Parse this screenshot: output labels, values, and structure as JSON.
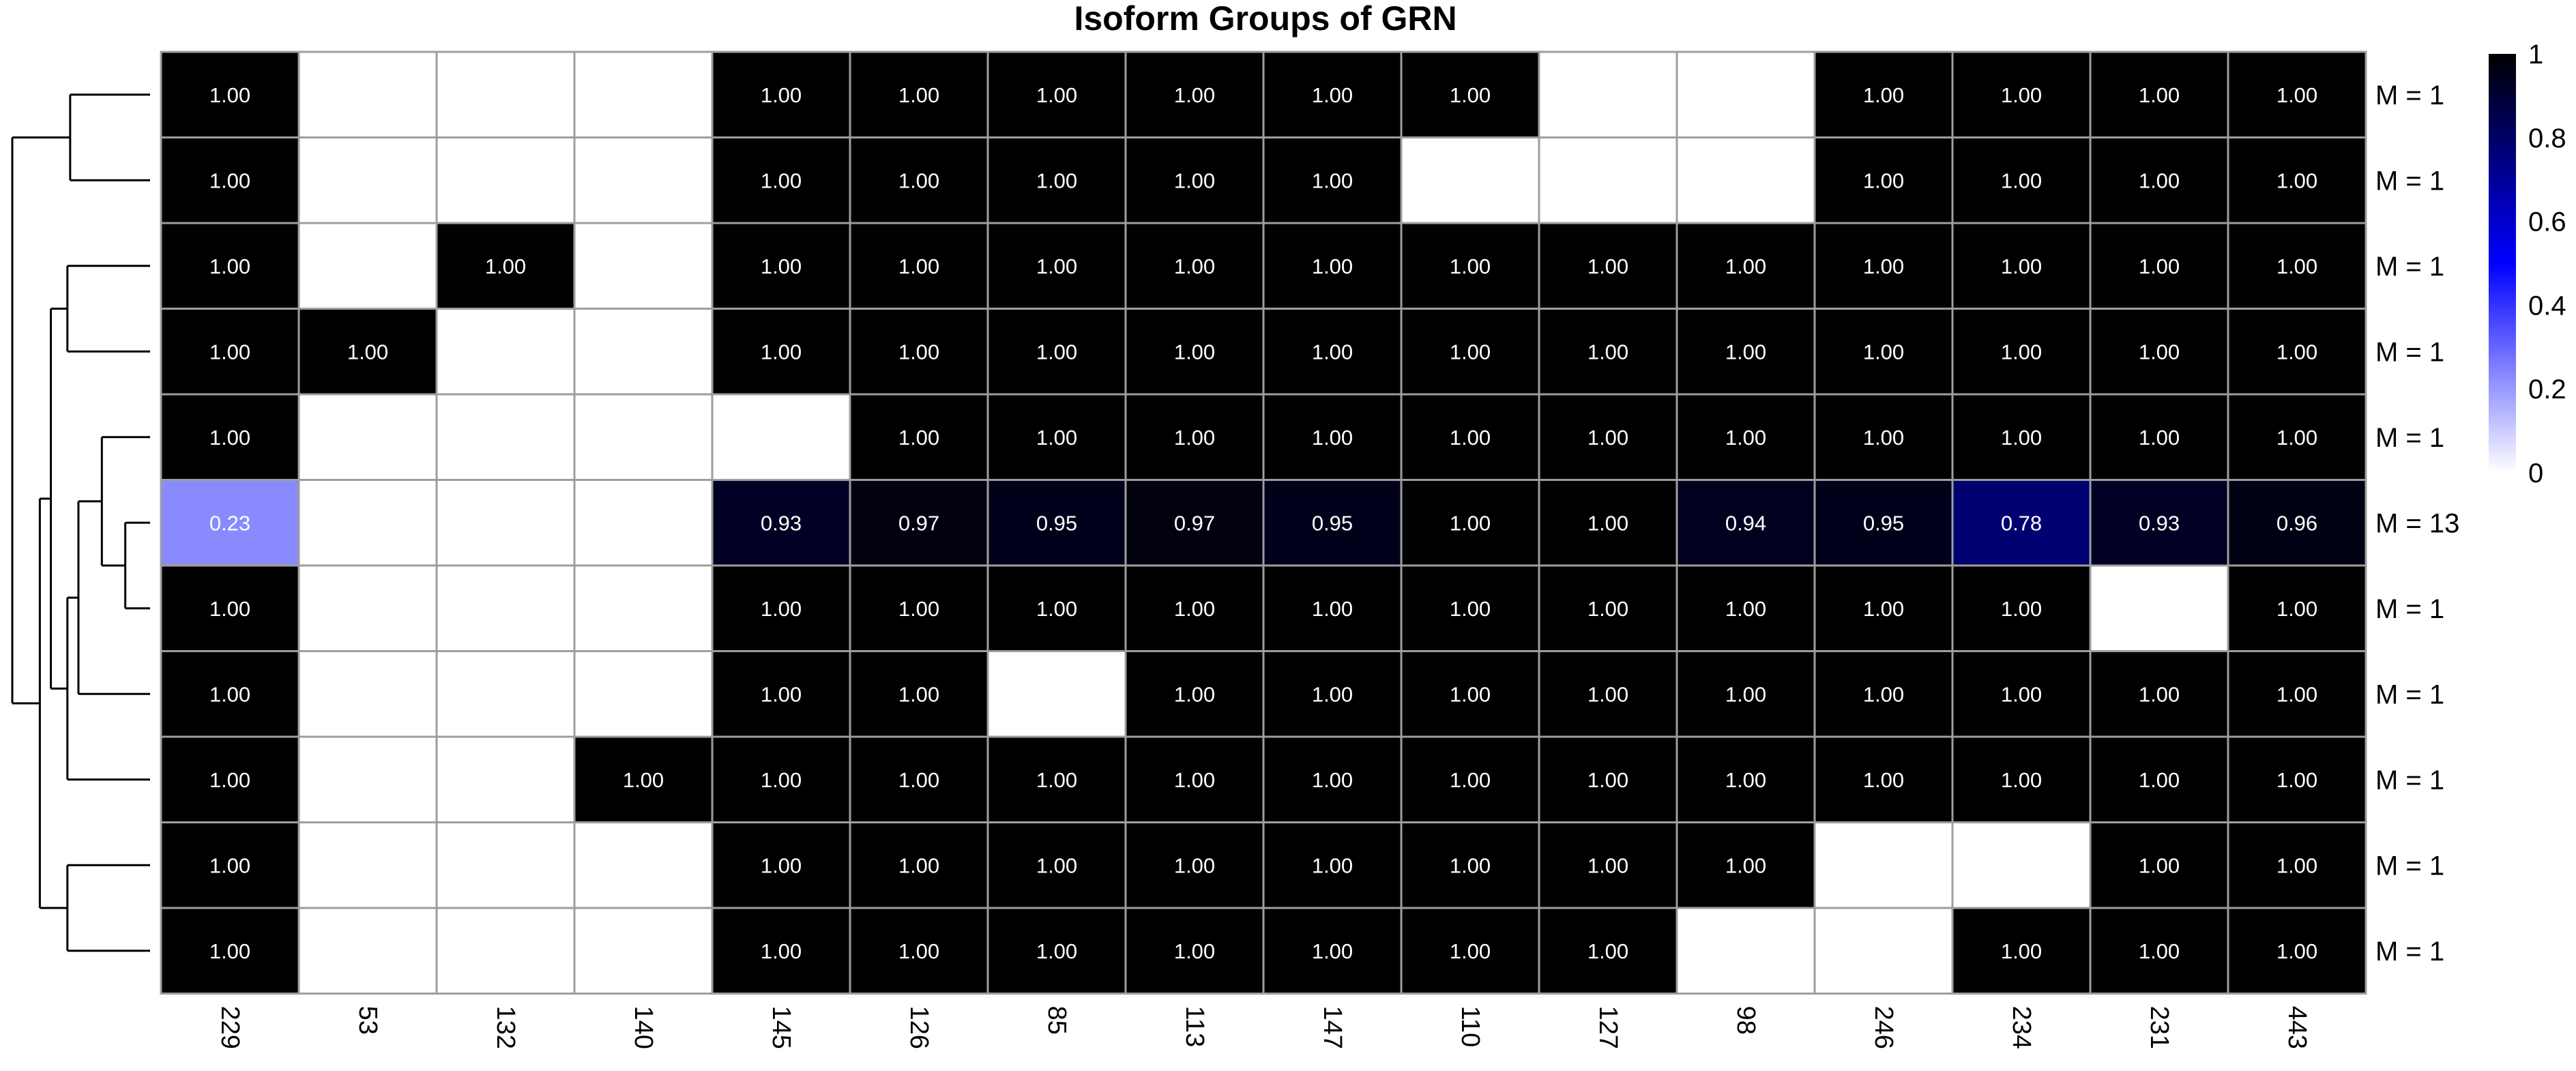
{
  "chart_data": {
    "type": "heatmap",
    "title": "Isoform Groups of GRN",
    "columns": [
      "229",
      "53",
      "132",
      "140",
      "145",
      "126",
      "85",
      "113",
      "147",
      "110",
      "127",
      "98",
      "246",
      "234",
      "231",
      "443"
    ],
    "row_labels": [
      "M = 1",
      "M = 1",
      "M = 1",
      "M = 1",
      "M = 1",
      "M = 13",
      "M = 1",
      "M = 1",
      "M = 1",
      "M = 1",
      "M = 1"
    ],
    "values": [
      [
        1.0,
        null,
        null,
        null,
        1.0,
        1.0,
        1.0,
        1.0,
        1.0,
        1.0,
        null,
        null,
        1.0,
        1.0,
        1.0,
        1.0
      ],
      [
        1.0,
        null,
        null,
        null,
        1.0,
        1.0,
        1.0,
        1.0,
        1.0,
        null,
        null,
        null,
        1.0,
        1.0,
        1.0,
        1.0
      ],
      [
        1.0,
        null,
        1.0,
        null,
        1.0,
        1.0,
        1.0,
        1.0,
        1.0,
        1.0,
        1.0,
        1.0,
        1.0,
        1.0,
        1.0,
        1.0
      ],
      [
        1.0,
        1.0,
        null,
        null,
        1.0,
        1.0,
        1.0,
        1.0,
        1.0,
        1.0,
        1.0,
        1.0,
        1.0,
        1.0,
        1.0,
        1.0
      ],
      [
        1.0,
        null,
        null,
        null,
        null,
        1.0,
        1.0,
        1.0,
        1.0,
        1.0,
        1.0,
        1.0,
        1.0,
        1.0,
        1.0,
        1.0
      ],
      [
        0.23,
        null,
        null,
        null,
        0.93,
        0.97,
        0.95,
        0.97,
        0.95,
        1.0,
        1.0,
        0.94,
        0.95,
        0.78,
        0.93,
        0.96
      ],
      [
        1.0,
        null,
        null,
        null,
        1.0,
        1.0,
        1.0,
        1.0,
        1.0,
        1.0,
        1.0,
        1.0,
        1.0,
        1.0,
        null,
        1.0
      ],
      [
        1.0,
        null,
        null,
        null,
        1.0,
        1.0,
        null,
        1.0,
        1.0,
        1.0,
        1.0,
        1.0,
        1.0,
        1.0,
        1.0,
        1.0
      ],
      [
        1.0,
        null,
        null,
        1.0,
        1.0,
        1.0,
        1.0,
        1.0,
        1.0,
        1.0,
        1.0,
        1.0,
        1.0,
        1.0,
        1.0,
        1.0
      ],
      [
        1.0,
        null,
        null,
        null,
        1.0,
        1.0,
        1.0,
        1.0,
        1.0,
        1.0,
        1.0,
        1.0,
        null,
        null,
        1.0,
        1.0
      ],
      [
        1.0,
        null,
        null,
        null,
        1.0,
        1.0,
        1.0,
        1.0,
        1.0,
        1.0,
        1.0,
        null,
        null,
        1.0,
        1.0,
        1.0
      ]
    ],
    "color_scale": {
      "stops": [
        {
          "value": 0,
          "color": "#ffffff"
        },
        {
          "value": 0.5,
          "color": "#0000ff"
        },
        {
          "value": 1,
          "color": "#000000"
        }
      ],
      "range": [
        0,
        1
      ],
      "ticks": [
        "0",
        "0.2",
        "0.4",
        "0.6",
        "0.8",
        "1"
      ]
    },
    "grid_color": "#9e9e9e",
    "dendrogram": {
      "side": "left",
      "line_color": "#000000",
      "merges": [
        {
          "a": 5,
          "b": 6,
          "h": 0.18
        },
        {
          "a": "m0",
          "b": 4,
          "h": 0.35
        },
        {
          "a": 7,
          "b": "m1",
          "h": 0.52
        },
        {
          "a": 3,
          "b": 2,
          "h": 0.6
        },
        {
          "a": 8,
          "b": "m2",
          "h": 0.6
        },
        {
          "a": "m3",
          "b": "m4",
          "h": 0.72
        },
        {
          "a": 0,
          "b": 1,
          "h": 0.58
        },
        {
          "a": 9,
          "b": 10,
          "h": 0.6
        },
        {
          "a": "m5",
          "b": "m7",
          "h": 0.8
        },
        {
          "a": "m6",
          "b": "m8",
          "h": 1.0
        }
      ]
    }
  }
}
